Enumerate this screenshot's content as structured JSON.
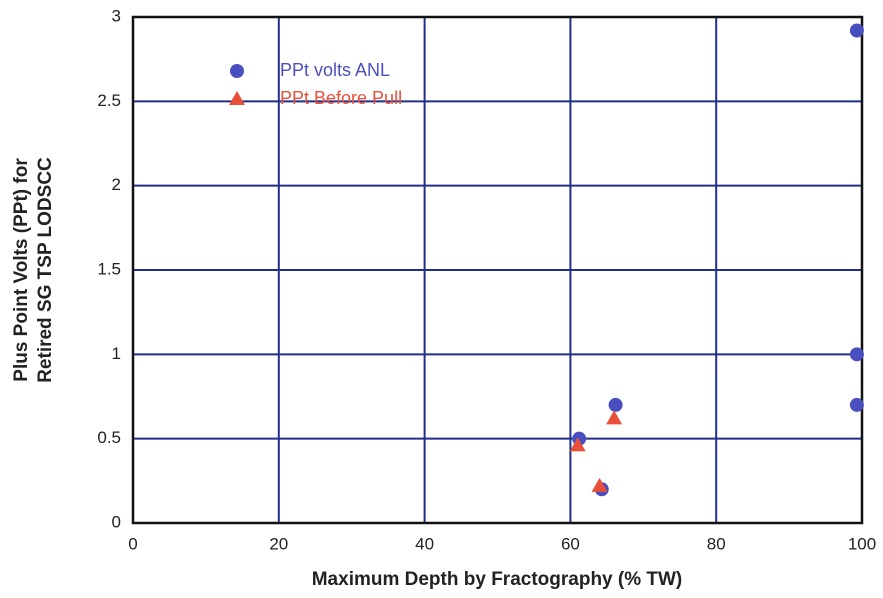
{
  "chart_data": {
    "type": "scatter",
    "x_label": "Maximum Depth by Fractography (% TW)",
    "y_label": [
      "Plus Point Volts (PPt) for",
      "Retired SG TSP LODSCC"
    ],
    "xlim": [
      0,
      100
    ],
    "xticks": [
      0,
      20,
      40,
      60,
      80,
      100
    ],
    "ylim": [
      0,
      3
    ],
    "yticks": [
      0,
      0.5,
      1,
      1.5,
      2,
      2.5,
      3
    ],
    "grid": true,
    "legend": "upper left",
    "series": [
      {
        "name": "PPt volts ANL",
        "color": "#4a4fc0",
        "marker": "circle",
        "x": [
          61.2,
          64.3,
          66.2,
          99.3,
          99.3,
          99.3
        ],
        "values": [
          0.5,
          0.2,
          0.7,
          2.92,
          1.0,
          0.7
        ]
      },
      {
        "name": "PPt Before Pull",
        "color": "#e8503a",
        "marker": "triangle",
        "x": [
          61,
          64,
          66
        ],
        "values": [
          0.46,
          0.22,
          0.62
        ]
      }
    ]
  }
}
